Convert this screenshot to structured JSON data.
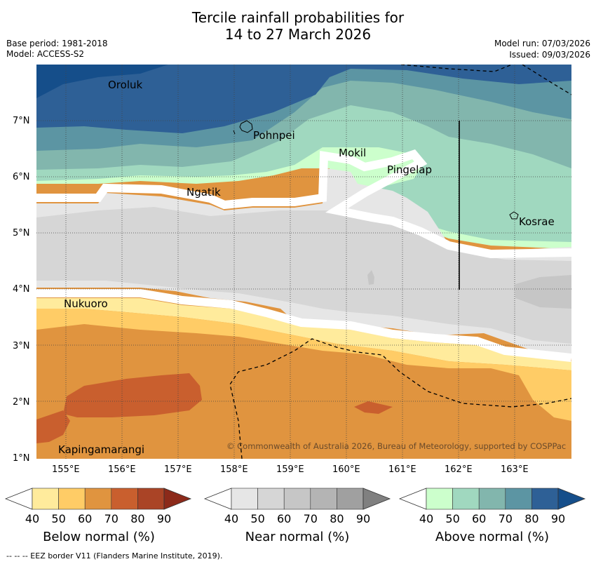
{
  "title": {
    "line1": "Tercile rainfall probabilities for",
    "line2": "14 to 27 March 2026"
  },
  "meta": {
    "base_period": "Base period: 1981-2018",
    "model": "Model: ACCESS-S2",
    "model_run": "Model run: 07/03/2026",
    "issued": "Issued: 09/03/2026"
  },
  "map": {
    "x_ticks": [
      "155°E",
      "156°E",
      "157°E",
      "158°E",
      "159°E",
      "160°E",
      "161°E",
      "162°E",
      "163°E"
    ],
    "y_ticks": [
      "7°N",
      "6°N",
      "5°N",
      "4°N",
      "3°N",
      "2°N",
      "1°N"
    ],
    "places": [
      {
        "name": "Oroluk"
      },
      {
        "name": "Pohnpei"
      },
      {
        "name": "Mokil"
      },
      {
        "name": "Pingelap"
      },
      {
        "name": "Ngatik"
      },
      {
        "name": "Kosrae"
      },
      {
        "name": "Nukuoro"
      },
      {
        "name": "Kapingamarangi"
      }
    ],
    "copyright": "© Commonwealth of Australia 2026, Bureau of Meteorology, supported by COSPPac"
  },
  "colorbars": [
    {
      "label": "Below normal (%)",
      "ticks": [
        "40",
        "50",
        "60",
        "70",
        "80",
        "90"
      ],
      "colors": [
        "#ffffff",
        "#ffeb9c",
        "#ffcc66",
        "#e0943f",
        "#c95f2e",
        "#aa4426",
        "#8c2a1a"
      ]
    },
    {
      "label": "Near normal (%)",
      "ticks": [
        "40",
        "50",
        "60",
        "70",
        "80",
        "90"
      ],
      "colors": [
        "#ffffff",
        "#e6e6e6",
        "#d6d6d6",
        "#c6c6c6",
        "#b4b4b4",
        "#a0a0a0",
        "#808080"
      ]
    },
    {
      "label": "Above normal (%)",
      "ticks": [
        "40",
        "50",
        "60",
        "70",
        "80",
        "90"
      ],
      "colors": [
        "#ffffff",
        "#ccffcc",
        "#a0d8bf",
        "#82b6ad",
        "#5c95a3",
        "#2e6096",
        "#154e8a"
      ]
    }
  ],
  "footer": "--  --  -- EEZ border V11 (Flanders Marine Institute, 2019)."
}
